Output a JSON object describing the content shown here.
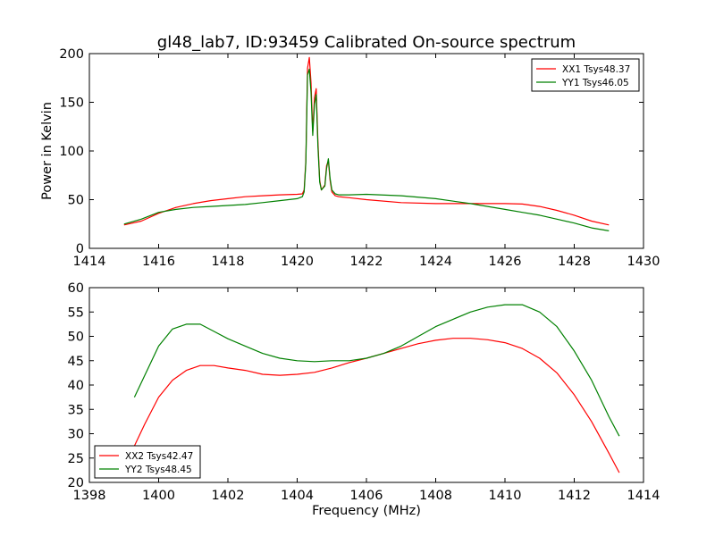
{
  "figure": {
    "title": "gl48_lab7, ID:93459 Calibrated On-source spectrum"
  },
  "chart_data": [
    {
      "type": "line",
      "title": "gl48_lab7, ID:93459 Calibrated On-source spectrum",
      "xlabel": "",
      "ylabel": "Power in Kelvin",
      "xlim": [
        1414,
        1430
      ],
      "ylim": [
        0,
        200
      ],
      "xticks": [
        1414,
        1416,
        1418,
        1420,
        1422,
        1424,
        1426,
        1428,
        1430
      ],
      "yticks": [
        0,
        50,
        100,
        150,
        200
      ],
      "grid": false,
      "legend_position": "upper-right",
      "series": [
        {
          "name": "XX1 Tsys48.37",
          "color": "#ff0000",
          "x": [
            1415.0,
            1415.5,
            1416.0,
            1416.5,
            1417.0,
            1417.5,
            1418.0,
            1418.5,
            1419.0,
            1419.5,
            1420.0,
            1420.15,
            1420.2,
            1420.25,
            1420.3,
            1420.35,
            1420.4,
            1420.45,
            1420.5,
            1420.55,
            1420.6,
            1420.65,
            1420.7,
            1420.8,
            1420.85,
            1420.9,
            1420.95,
            1421.0,
            1421.1,
            1421.2,
            1421.5,
            1422.0,
            1423.0,
            1424.0,
            1425.0,
            1426.0,
            1426.5,
            1427.0,
            1427.5,
            1428.0,
            1428.5,
            1429.0
          ],
          "y": [
            24,
            28,
            36,
            42,
            46,
            49,
            51,
            53,
            54,
            55,
            55.5,
            56,
            60,
            90,
            185,
            196,
            170,
            120,
            155,
            164,
            110,
            70,
            60,
            65,
            85,
            90,
            70,
            58,
            54,
            53,
            52,
            50,
            47,
            46,
            46,
            46,
            45.5,
            43,
            39,
            34,
            28,
            24
          ]
        },
        {
          "name": "YY1 Tsys46.05",
          "color": "#008000",
          "x": [
            1415.0,
            1415.5,
            1416.0,
            1416.5,
            1417.0,
            1417.5,
            1418.0,
            1418.5,
            1419.0,
            1419.5,
            1420.0,
            1420.15,
            1420.2,
            1420.25,
            1420.3,
            1420.35,
            1420.4,
            1420.45,
            1420.5,
            1420.55,
            1420.6,
            1420.65,
            1420.7,
            1420.8,
            1420.85,
            1420.9,
            1420.95,
            1421.0,
            1421.1,
            1421.2,
            1421.5,
            1422.0,
            1423.0,
            1424.0,
            1425.0,
            1426.0,
            1426.5,
            1427.0,
            1427.5,
            1428.0,
            1428.5,
            1429.0
          ],
          "y": [
            25,
            30,
            37,
            40,
            42,
            43,
            44,
            45,
            47,
            49,
            51,
            53,
            58,
            88,
            178,
            184,
            160,
            116,
            148,
            158,
            105,
            68,
            60,
            64,
            82,
            92,
            72,
            60,
            56,
            55,
            55,
            55.5,
            54,
            51,
            46,
            40,
            37,
            34,
            30,
            26,
            21,
            18
          ]
        }
      ]
    },
    {
      "type": "line",
      "title": "",
      "xlabel": "Frequency (MHz)",
      "ylabel": "",
      "xlim": [
        1398,
        1414
      ],
      "ylim": [
        20,
        60
      ],
      "xticks": [
        1398,
        1400,
        1402,
        1404,
        1406,
        1408,
        1410,
        1412,
        1414
      ],
      "yticks": [
        20,
        25,
        30,
        35,
        40,
        45,
        50,
        55,
        60
      ],
      "grid": false,
      "legend_position": "lower-left",
      "series": [
        {
          "name": "XX2 Tsys42.47",
          "color": "#ff0000",
          "x": [
            1399.3,
            1399.6,
            1400.0,
            1400.4,
            1400.8,
            1401.2,
            1401.6,
            1402.0,
            1402.5,
            1403.0,
            1403.5,
            1404.0,
            1404.5,
            1405.0,
            1405.5,
            1406.0,
            1406.5,
            1407.0,
            1407.5,
            1408.0,
            1408.5,
            1409.0,
            1409.5,
            1410.0,
            1410.5,
            1411.0,
            1411.5,
            1412.0,
            1412.5,
            1413.0,
            1413.3
          ],
          "y": [
            27.5,
            32,
            37.5,
            41,
            43,
            44,
            44,
            43.5,
            43,
            42.2,
            42,
            42.2,
            42.6,
            43.5,
            44.6,
            45.5,
            46.5,
            47.5,
            48.5,
            49.2,
            49.6,
            49.6,
            49.3,
            48.7,
            47.5,
            45.5,
            42.5,
            38,
            32.5,
            26,
            22
          ]
        },
        {
          "name": "YY2 Tsys48.45",
          "color": "#008000",
          "x": [
            1399.3,
            1399.6,
            1400.0,
            1400.4,
            1400.8,
            1401.2,
            1401.6,
            1402.0,
            1402.5,
            1403.0,
            1403.5,
            1404.0,
            1404.5,
            1405.0,
            1405.5,
            1406.0,
            1406.5,
            1407.0,
            1407.5,
            1408.0,
            1408.5,
            1409.0,
            1409.5,
            1410.0,
            1410.5,
            1411.0,
            1411.5,
            1412.0,
            1412.5,
            1413.0,
            1413.3
          ],
          "y": [
            37.5,
            42,
            48,
            51.5,
            52.5,
            52.5,
            51,
            49.5,
            48,
            46.5,
            45.5,
            45,
            44.8,
            45,
            45,
            45.5,
            46.5,
            48,
            50,
            52,
            53.5,
            55,
            56,
            56.5,
            56.5,
            55,
            52,
            47,
            41,
            33.5,
            29.5
          ]
        }
      ]
    }
  ]
}
